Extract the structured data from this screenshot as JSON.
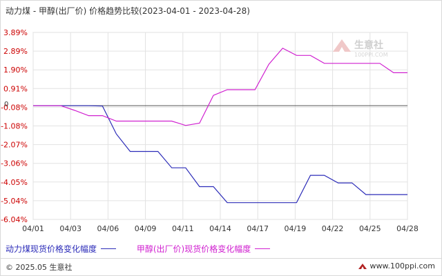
{
  "chart_title": "动力煤 - 甲醇(出厂价) 价格趋势比较(2023-04-01 - 2023-04-28)",
  "watermark": {
    "name": "生意社",
    "url": "100PPI.COM"
  },
  "footer": {
    "copyright": "© 2025.05 生意社",
    "site": "www.100ppi.com"
  },
  "colors": {
    "series1": "#2b2bb8",
    "series2": "#d020d0",
    "grid": "#e2e2e2",
    "zero_line": "#555555",
    "axis_text_red": "#cc0000"
  },
  "chart_data": {
    "type": "line",
    "title": "动力煤 - 甲醇(出厂价) 价格趋势比较(2023-04-01 - 2023-04-28)",
    "xlabel": "",
    "ylabel": "",
    "x_tick_labels": [
      "04/01",
      "04/03",
      "04/06",
      "04/09",
      "04/11",
      "04/14",
      "04/17",
      "04/19",
      "04/22",
      "04/25",
      "04/28"
    ],
    "y_tick_labels": [
      "3.89%",
      "2.89%",
      "1.90%",
      "0.91%",
      "-0.08%",
      "-1.08%",
      "-2.07%",
      "-3.06%",
      "-4.05%",
      "-5.04%",
      "-6.04%"
    ],
    "zero_label": "0",
    "ylim": [
      -6.04,
      3.89
    ],
    "x_dates": [
      "04/01",
      "04/02",
      "04/03",
      "04/04",
      "04/05",
      "04/06",
      "04/07",
      "04/08",
      "04/09",
      "04/10",
      "04/11",
      "04/12",
      "04/13",
      "04/14",
      "04/15",
      "04/16",
      "04/17",
      "04/18",
      "04/19",
      "04/20",
      "04/21",
      "04/22",
      "04/23",
      "04/24",
      "04/25",
      "04/26",
      "04/27",
      "04/28"
    ],
    "series": [
      {
        "name": "动力煤现货价格变化幅度",
        "values": [
          0,
          0,
          0,
          0,
          0,
          -0.02,
          -1.5,
          -2.43,
          -2.43,
          -2.43,
          -3.3,
          -3.3,
          -4.3,
          -4.3,
          -5.15,
          -5.15,
          -5.15,
          -5.15,
          -5.15,
          -5.15,
          -3.7,
          -3.7,
          -4.1,
          -4.1,
          -4.72,
          -4.72,
          -4.72,
          -4.72
        ]
      },
      {
        "name": "甲醇(出厂价)现货价格变化幅度",
        "values": [
          0,
          0,
          0,
          -0.25,
          -0.53,
          -0.53,
          -0.82,
          -0.82,
          -0.82,
          -0.82,
          -0.82,
          -1.05,
          -0.93,
          0.55,
          0.85,
          0.85,
          0.85,
          2.2,
          3.05,
          2.67,
          2.67,
          2.25,
          2.25,
          2.25,
          2.25,
          2.25,
          1.75,
          1.75
        ]
      }
    ],
    "legend_position": "bottom-left",
    "grid": true
  }
}
